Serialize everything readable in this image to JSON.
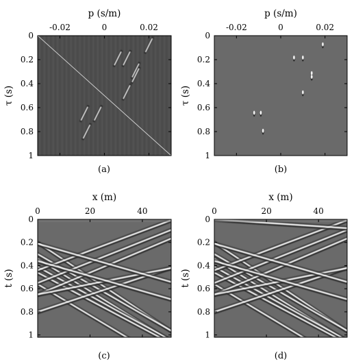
{
  "chart_data": [
    {
      "type": "heatmap",
      "caption": "(a)",
      "xlabel": "p (s/m)",
      "ylabel": "τ (s)",
      "xticks": [
        "-0.02",
        "0",
        "0.02"
      ],
      "yticks": [
        "0",
        "0.2",
        "0.4",
        "0.6",
        "0.8",
        "1"
      ],
      "xlim": [
        -0.03,
        0.03
      ],
      "ylim": [
        0,
        1
      ],
      "events": [
        {
          "p": 0.02,
          "tau": 0.08
        },
        {
          "p": 0.006,
          "tau": 0.19
        },
        {
          "p": 0.01,
          "tau": 0.19
        },
        {
          "p": 0.014,
          "tau": 0.29
        },
        {
          "p": 0.014,
          "tau": 0.33
        },
        {
          "p": 0.01,
          "tau": 0.47
        },
        {
          "p": -0.009,
          "tau": 0.65
        },
        {
          "p": -0.003,
          "tau": 0.65
        },
        {
          "p": -0.008,
          "tau": 0.8
        }
      ],
      "diagonal_artifact": {
        "from": [
          -0.03,
          0
        ],
        "to": [
          0.03,
          1
        ]
      }
    },
    {
      "type": "heatmap",
      "caption": "(b)",
      "xlabel": "p (s/m)",
      "ylabel": "τ (s)",
      "xticks": [
        "-0.02",
        "0",
        "0.02"
      ],
      "yticks": [
        "0",
        "0.2",
        "0.4",
        "0.6",
        "0.8",
        "1"
      ],
      "xlim": [
        -0.03,
        0.03
      ],
      "ylim": [
        0,
        1
      ],
      "events": [
        {
          "p": 0.019,
          "tau": 0.08
        },
        {
          "p": 0.006,
          "tau": 0.19
        },
        {
          "p": 0.01,
          "tau": 0.19
        },
        {
          "p": 0.014,
          "tau": 0.32
        },
        {
          "p": 0.014,
          "tau": 0.35
        },
        {
          "p": 0.01,
          "tau": 0.48
        },
        {
          "p": -0.012,
          "tau": 0.65
        },
        {
          "p": -0.009,
          "tau": 0.65
        },
        {
          "p": -0.008,
          "tau": 0.8
        }
      ]
    },
    {
      "type": "heatmap",
      "caption": "(c)",
      "xlabel": "x (m)",
      "ylabel": "t (s)",
      "xticks": [
        "0",
        "20",
        "40"
      ],
      "yticks": [
        "0",
        "0.2",
        "0.4",
        "0.6",
        "0.8",
        "1"
      ],
      "xlim": [
        0,
        51
      ],
      "ylim": [
        0,
        1.02
      ],
      "events": [
        {
          "t0": 0.2,
          "slope": 0.015
        },
        {
          "t0": 0.3,
          "slope": 0.013
        },
        {
          "t0": 0.34,
          "slope": 0.014
        },
        {
          "t0": 0.41,
          "slope": 0.0125
        },
        {
          "t0": 0.46,
          "slope": 0.012
        },
        {
          "t0": 0.56,
          "slope": 0.0135
        },
        {
          "t0": 0.65,
          "slope": -0.0095
        },
        {
          "t0": 0.55,
          "slope": -0.009
        },
        {
          "t0": 0.44,
          "slope": -0.0085
        },
        {
          "t0": 0.8,
          "slope": -0.0075
        },
        {
          "t0": 0.65,
          "slope": -0.0045
        },
        {
          "t0": 0.36,
          "slope": 0.0065
        },
        {
          "t0": 0.21,
          "slope": 0.0065
        }
      ]
    },
    {
      "type": "heatmap",
      "caption": "(d)",
      "xlabel": "x (m)",
      "ylabel": "t (s)",
      "xticks": [
        "0",
        "20",
        "40"
      ],
      "yticks": [
        "0",
        "0.2",
        "0.4",
        "0.6",
        "0.8",
        "1"
      ],
      "xlim": [
        0,
        51
      ],
      "ylim": [
        0,
        1.02
      ],
      "events": [
        {
          "t0": 0.2,
          "slope": 0.015
        },
        {
          "t0": 0.3,
          "slope": 0.013
        },
        {
          "t0": 0.34,
          "slope": 0.014
        },
        {
          "t0": 0.41,
          "slope": 0.0125
        },
        {
          "t0": 0.46,
          "slope": 0.012
        },
        {
          "t0": 0.56,
          "slope": 0.0135
        },
        {
          "t0": 0.65,
          "slope": -0.0095
        },
        {
          "t0": 0.55,
          "slope": -0.009
        },
        {
          "t0": 0.44,
          "slope": -0.0085
        },
        {
          "t0": 0.8,
          "slope": -0.0075
        },
        {
          "t0": 0.65,
          "slope": -0.0045
        },
        {
          "t0": 0.36,
          "slope": 0.0065
        },
        {
          "t0": 0.21,
          "slope": 0.0065
        },
        {
          "t0": 0.0,
          "slope": 0.0015
        }
      ]
    }
  ]
}
